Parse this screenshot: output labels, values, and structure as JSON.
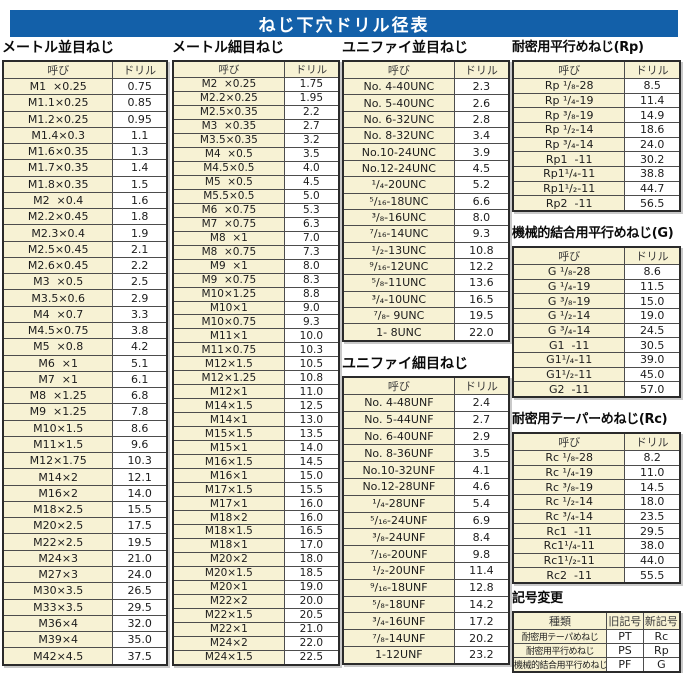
{
  "page_title": "ねじ下穴ドリル径表",
  "colors": {
    "banner_blue": "#1360a9",
    "cell_beige": "#f7f2d4",
    "border_dark": "#2b2b2b"
  },
  "tables": [
    {
      "title": "メートル並目ねじ",
      "headers": [
        "呼び",
        "ドリル"
      ],
      "rows": [
        [
          "M1  ×0.25",
          "0.75"
        ],
        [
          "M1.1×0.25",
          "0.85"
        ],
        [
          "M1.2×0.25",
          "0.95"
        ],
        [
          "M1.4×0.3",
          "1.1"
        ],
        [
          "M1.6×0.35",
          "1.3"
        ],
        [
          "M1.7×0.35",
          "1.4"
        ],
        [
          "M1.8×0.35",
          "1.5"
        ],
        [
          "M2  ×0.4",
          "1.6"
        ],
        [
          "M2.2×0.45",
          "1.8"
        ],
        [
          "M2.3×0.4",
          "1.9"
        ],
        [
          "M2.5×0.45",
          "2.1"
        ],
        [
          "M2.6×0.45",
          "2.2"
        ],
        [
          "M3  ×0.5",
          "2.5"
        ],
        [
          "M3.5×0.6",
          "2.9"
        ],
        [
          "M4  ×0.7",
          "3.3"
        ],
        [
          "M4.5×0.75",
          "3.8"
        ],
        [
          "M5  ×0.8",
          "4.2"
        ],
        [
          "M6  ×1",
          "5.1"
        ],
        [
          "M7  ×1",
          "6.1"
        ],
        [
          "M8  ×1.25",
          "6.8"
        ],
        [
          "M9  ×1.25",
          "7.8"
        ],
        [
          "M10×1.5",
          "8.6"
        ],
        [
          "M11×1.5",
          "9.6"
        ],
        [
          "M12×1.75",
          "10.3"
        ],
        [
          "M14×2",
          "12.1"
        ],
        [
          "M16×2",
          "14.0"
        ],
        [
          "M18×2.5",
          "15.5"
        ],
        [
          "M20×2.5",
          "17.5"
        ],
        [
          "M22×2.5",
          "19.5"
        ],
        [
          "M24×3",
          "21.0"
        ],
        [
          "M27×3",
          "24.0"
        ],
        [
          "M30×3.5",
          "26.5"
        ],
        [
          "M33×3.5",
          "29.5"
        ],
        [
          "M36×4",
          "32.0"
        ],
        [
          "M39×4",
          "35.0"
        ],
        [
          "M42×4.5",
          "37.5"
        ]
      ]
    },
    {
      "title": "メートル細目ねじ",
      "headers": [
        "呼び",
        "ドリル"
      ],
      "rows": [
        [
          "M2  ×0.25",
          "1.75"
        ],
        [
          "M2.2×0.25",
          "1.95"
        ],
        [
          "M2.5×0.35",
          "2.2"
        ],
        [
          "M3  ×0.35",
          "2.7"
        ],
        [
          "M3.5×0.35",
          "3.2"
        ],
        [
          "M4  ×0.5",
          "3.5"
        ],
        [
          "M4.5×0.5",
          "4.0"
        ],
        [
          "M5  ×0.5",
          "4.5"
        ],
        [
          "M5.5×0.5",
          "5.0"
        ],
        [
          "M6  ×0.75",
          "5.3"
        ],
        [
          "M7  ×0.75",
          "6.3"
        ],
        [
          "M8  ×1",
          "7.0"
        ],
        [
          "M8  ×0.75",
          "7.3"
        ],
        [
          "M9  ×1",
          "8.0"
        ],
        [
          "M9  ×0.75",
          "8.3"
        ],
        [
          "M10×1.25",
          "8.8"
        ],
        [
          "M10×1",
          "9.0"
        ],
        [
          "M10×0.75",
          "9.3"
        ],
        [
          "M11×1",
          "10.0"
        ],
        [
          "M11×0.75",
          "10.3"
        ],
        [
          "M12×1.5",
          "10.5"
        ],
        [
          "M12×1.25",
          "10.8"
        ],
        [
          "M12×1",
          "11.0"
        ],
        [
          "M14×1.5",
          "12.5"
        ],
        [
          "M14×1",
          "13.0"
        ],
        [
          "M15×1.5",
          "13.5"
        ],
        [
          "M15×1",
          "14.0"
        ],
        [
          "M16×1.5",
          "14.5"
        ],
        [
          "M16×1",
          "15.0"
        ],
        [
          "M17×1.5",
          "15.5"
        ],
        [
          "M17×1",
          "16.0"
        ],
        [
          "M18×2",
          "16.0"
        ],
        [
          "M18×1.5",
          "16.5"
        ],
        [
          "M18×1",
          "17.0"
        ],
        [
          "M20×2",
          "18.0"
        ],
        [
          "M20×1.5",
          "18.5"
        ],
        [
          "M20×1",
          "19.0"
        ],
        [
          "M22×2",
          "20.0"
        ],
        [
          "M22×1.5",
          "20.5"
        ],
        [
          "M22×1",
          "21.0"
        ],
        [
          "M24×2",
          "22.0"
        ],
        [
          "M24×1.5",
          "22.5"
        ]
      ]
    },
    {
      "title": "ユニファイ並目ねじ",
      "headers": [
        "呼び",
        "ドリル"
      ],
      "rows": [
        [
          "No. 4-40UNC",
          "2.3"
        ],
        [
          "No. 5-40UNC",
          "2.6"
        ],
        [
          "No. 6-32UNC",
          "2.8"
        ],
        [
          "No. 8-32UNC",
          "3.4"
        ],
        [
          "No.10-24UNC",
          "3.9"
        ],
        [
          "No.12-24UNC",
          "4.5"
        ],
        [
          "¹/₄-20UNC",
          "5.2"
        ],
        [
          "⁵/₁₆-18UNC",
          "6.6"
        ],
        [
          "³/₈-16UNC",
          "8.0"
        ],
        [
          "⁷/₁₆-14UNC",
          "9.3"
        ],
        [
          "¹/₂-13UNC",
          "10.8"
        ],
        [
          "⁹/₁₆-12UNC",
          "12.2"
        ],
        [
          "⁵/₈-11UNC",
          "13.6"
        ],
        [
          "³/₄-10UNC",
          "16.5"
        ],
        [
          "⁷/₈- 9UNC",
          "19.5"
        ],
        [
          "1- 8UNC",
          "22.0"
        ]
      ]
    },
    {
      "title": "ユニファイ細目ねじ",
      "headers": [
        "呼び",
        "ドリル"
      ],
      "rows": [
        [
          "No. 4-48UNF",
          "2.4"
        ],
        [
          "No. 5-44UNF",
          "2.7"
        ],
        [
          "No. 6-40UNF",
          "2.9"
        ],
        [
          "No. 8-36UNF",
          "3.5"
        ],
        [
          "No.10-32UNF",
          "4.1"
        ],
        [
          "No.12-28UNF",
          "4.6"
        ],
        [
          "¹/₄-28UNF",
          "5.4"
        ],
        [
          "⁵/₁₆-24UNF",
          "6.9"
        ],
        [
          "³/₈-24UNF",
          "8.4"
        ],
        [
          "⁷/₁₆-20UNF",
          "9.8"
        ],
        [
          "¹/₂-20UNF",
          "11.4"
        ],
        [
          "⁹/₁₆-18UNF",
          "12.8"
        ],
        [
          "⁵/₈-18UNF",
          "14.2"
        ],
        [
          "³/₄-16UNF",
          "17.2"
        ],
        [
          "⁷/₈-14UNF",
          "20.2"
        ],
        [
          "1-12UNF",
          "23.2"
        ]
      ]
    },
    {
      "title": "耐密用平行めねじ(Rp)",
      "headers": [
        "呼び",
        "ドリル"
      ],
      "rows": [
        [
          "Rp ¹/₈-28",
          "8.5"
        ],
        [
          "Rp ¹/₄-19",
          "11.4"
        ],
        [
          "Rp ³/₈-19",
          "14.9"
        ],
        [
          "Rp ¹/₂-14",
          "18.6"
        ],
        [
          "Rp ³/₄-14",
          "24.0"
        ],
        [
          "Rp1  -11",
          "30.2"
        ],
        [
          "Rp1¹/₄-11",
          "38.8"
        ],
        [
          "Rp1¹/₂-11",
          "44.7"
        ],
        [
          "Rp2  -11",
          "56.5"
        ]
      ]
    },
    {
      "title": "機械的結合用平行めねじ(G)",
      "headers": [
        "呼び",
        "ドリル"
      ],
      "rows": [
        [
          "G ¹/₈-28",
          "8.6"
        ],
        [
          "G ¹/₄-19",
          "11.5"
        ],
        [
          "G ³/₈-19",
          "15.0"
        ],
        [
          "G ¹/₂-14",
          "19.0"
        ],
        [
          "G ³/₄-14",
          "24.5"
        ],
        [
          "G1  -11",
          "30.5"
        ],
        [
          "G1¹/₄-11",
          "39.0"
        ],
        [
          "G1¹/₂-11",
          "45.0"
        ],
        [
          "G2  -11",
          "57.0"
        ]
      ]
    },
    {
      "title": "耐密用テーパーめねじ(Rc)",
      "headers": [
        "呼び",
        "ドリル"
      ],
      "rows": [
        [
          "Rc ¹/₈-28",
          "8.2"
        ],
        [
          "Rc ¹/₄-19",
          "11.0"
        ],
        [
          "Rc ³/₈-19",
          "14.5"
        ],
        [
          "Rc ¹/₂-14",
          "18.0"
        ],
        [
          "Rc ³/₄-14",
          "23.5"
        ],
        [
          "Rc1  -11",
          "29.5"
        ],
        [
          "Rc1¹/₄-11",
          "38.0"
        ],
        [
          "Rc1¹/₂-11",
          "44.0"
        ],
        [
          "Rc2  -11",
          "55.5"
        ]
      ]
    }
  ],
  "symbol_table": {
    "title": "記号変更",
    "headers": [
      "種類",
      "旧記号",
      "新記号"
    ],
    "rows": [
      [
        "耐密用テーパめねじ",
        "PT",
        "Rc"
      ],
      [
        "耐密用平行めねじ",
        "PS",
        "Rp"
      ],
      [
        "機械的結合用平行めねじ",
        "PF",
        "G"
      ]
    ]
  }
}
